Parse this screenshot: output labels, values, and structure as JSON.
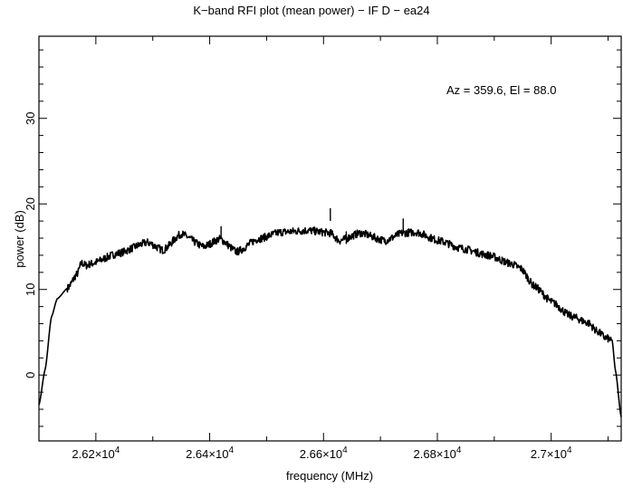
{
  "chart_data": {
    "type": "line",
    "title": "K−band RFI plot (mean power) − IF D − ea24",
    "annotation": "Az = 359.6, El = 88.0",
    "xlabel": "frequency (MHz)",
    "ylabel": "power (dB)",
    "xlim": [
      26100,
      27123
    ],
    "ylim": [
      -7.7,
      39.6
    ],
    "xticks": [
      {
        "value": 26200,
        "mantissa": "2.62",
        "exp": "4"
      },
      {
        "value": 26400,
        "mantissa": "2.64",
        "exp": "4"
      },
      {
        "value": 26600,
        "mantissa": "2.66",
        "exp": "4"
      },
      {
        "value": 26800,
        "mantissa": "2.68",
        "exp": "4"
      },
      {
        "value": 27000,
        "mantissa": "2.7",
        "exp": "4"
      }
    ],
    "yticks": [
      0,
      10,
      20,
      30
    ],
    "grid": false,
    "color": "#000000",
    "series": [
      {
        "x": [
          26100,
          26111,
          26122,
          26132,
          26151,
          26167,
          26175,
          26183,
          26191,
          26238,
          26291,
          26318,
          26350,
          26389,
          26418,
          26448,
          26485,
          26525,
          26572,
          26612,
          26628,
          26665,
          26708,
          26739,
          26763,
          26803,
          26843,
          26890,
          26930,
          26946,
          26970,
          27002,
          27034,
          27065,
          27081,
          27097,
          27107,
          27113,
          27123
        ],
        "y": [
          -3.5,
          0.7,
          6.8,
          8.9,
          10.2,
          11.8,
          13.1,
          12.8,
          13.0,
          14.2,
          15.5,
          14.6,
          16.5,
          15.0,
          15.9,
          14.4,
          15.9,
          16.7,
          16.9,
          16.6,
          15.7,
          16.6,
          15.7,
          16.6,
          16.7,
          15.7,
          14.8,
          14.0,
          13.0,
          12.5,
          10.4,
          8.5,
          6.9,
          6.1,
          5.1,
          4.3,
          4.1,
          0.5,
          -4.9
        ]
      }
    ],
    "spikes": [
      {
        "x": 26420,
        "y": 17.4
      },
      {
        "x": 26612,
        "y": 19.5
      },
      {
        "x": 26640,
        "y": 16.8
      },
      {
        "x": 26740,
        "y": 18.3
      }
    ]
  }
}
